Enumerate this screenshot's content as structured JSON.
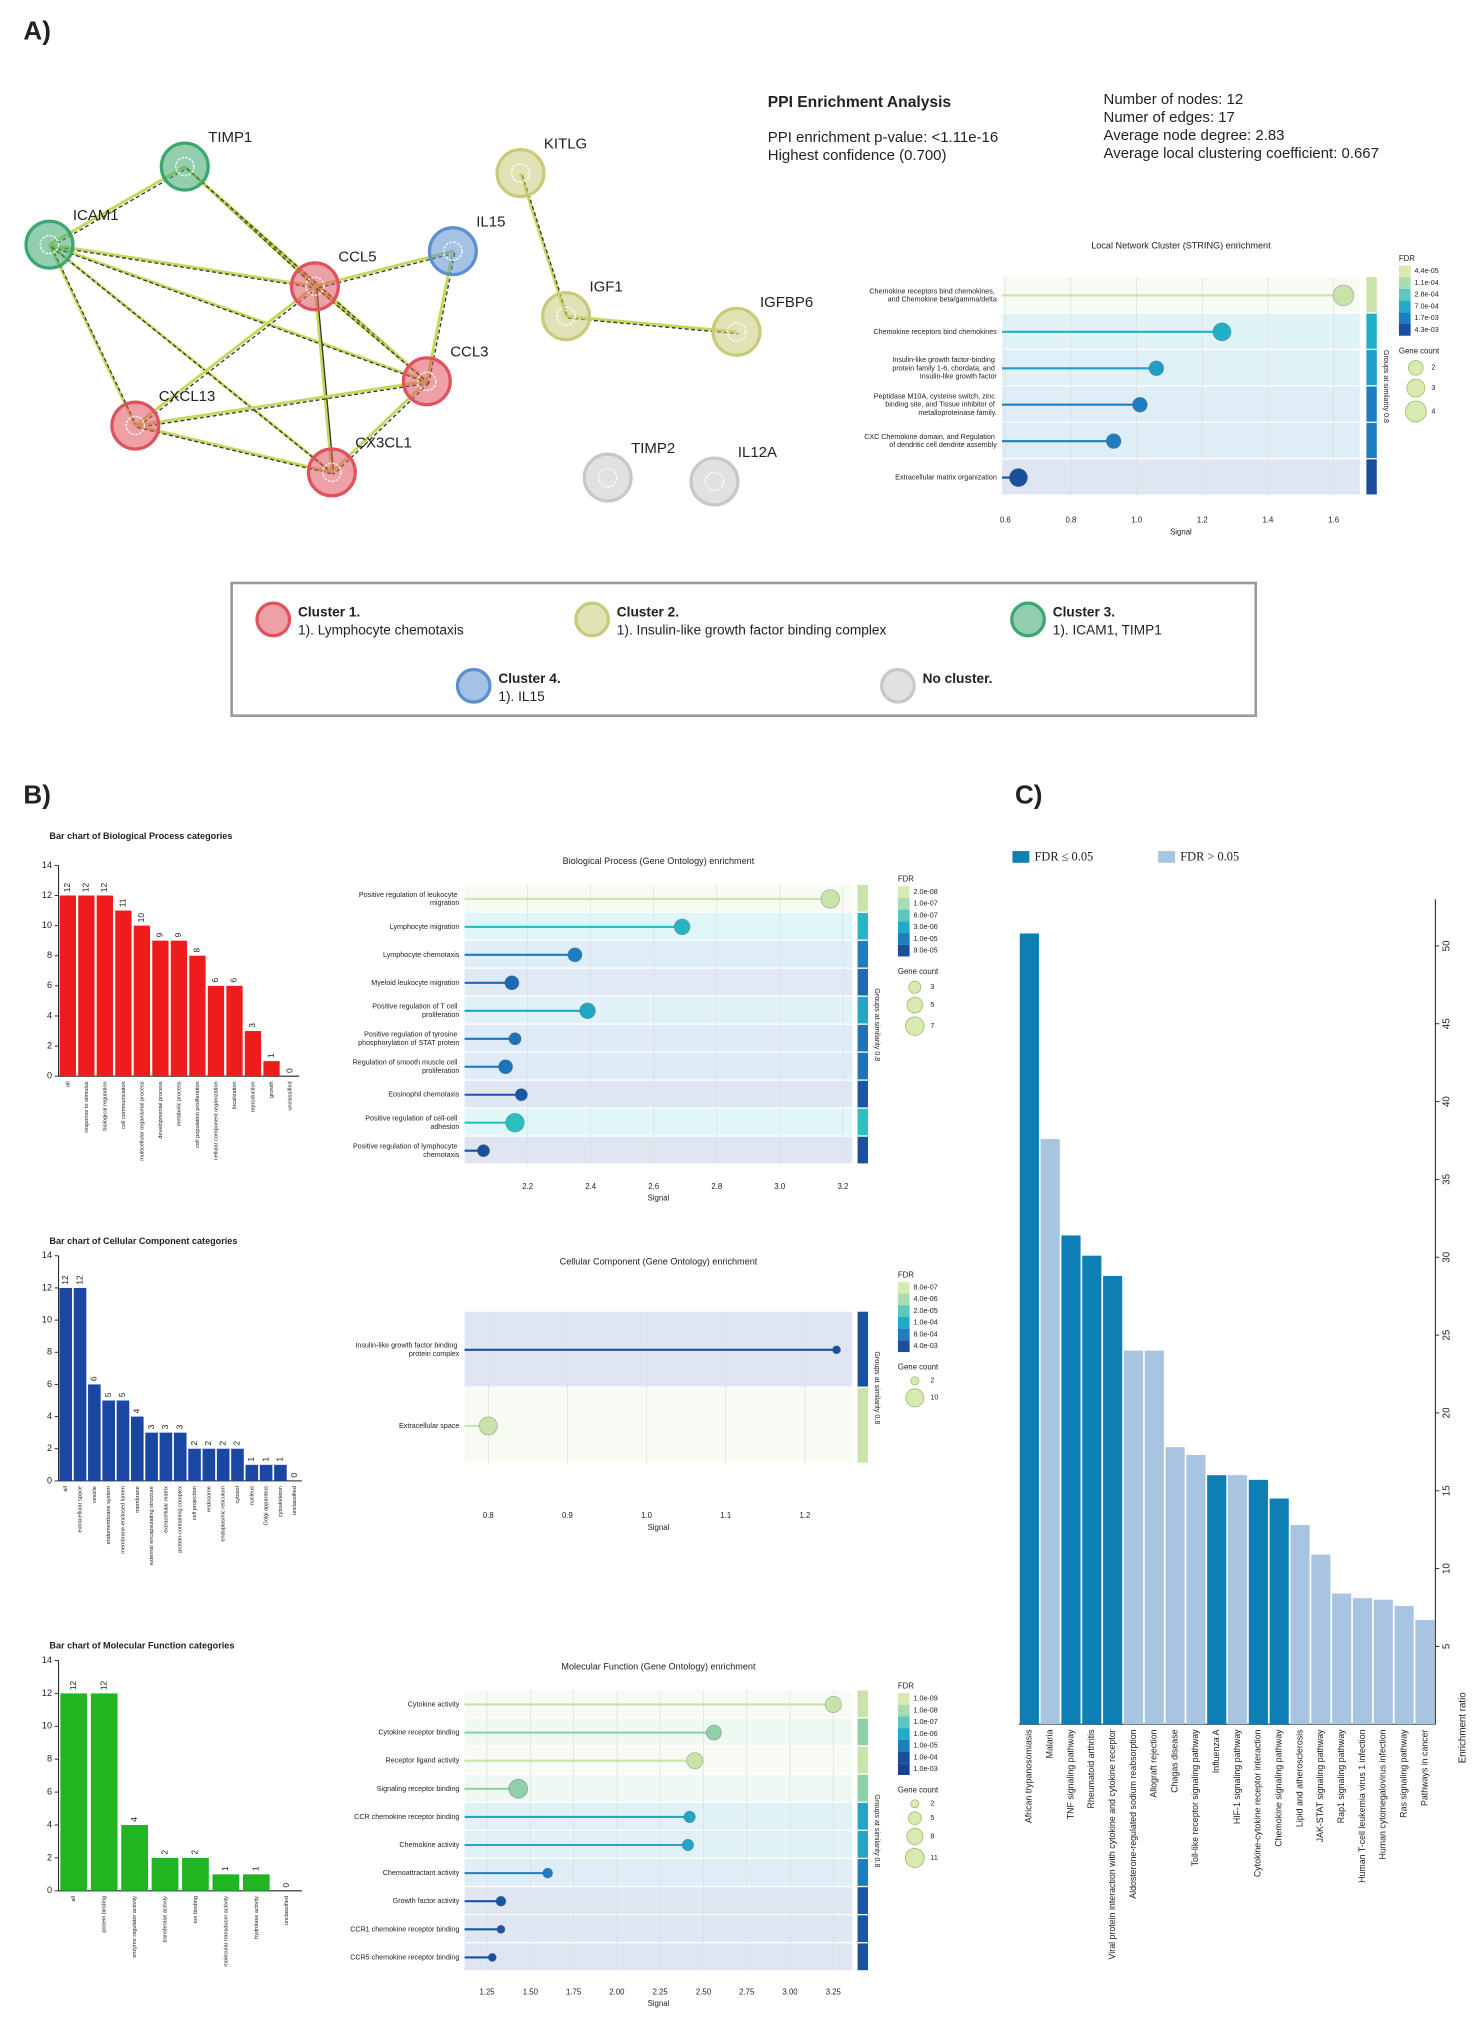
{
  "panel_labels": [
    "A)",
    "B)",
    "C)"
  ],
  "network": {
    "nodes": [
      {
        "label": "TIMP1",
        "color": "#3aa86e"
      },
      {
        "label": "ICAM1",
        "color": "#3aa86e"
      },
      {
        "label": "IL15",
        "color": "#5b8fd0"
      },
      {
        "label": "CCL5",
        "color": "#e0525e"
      },
      {
        "label": "CCL3",
        "color": "#e0525e"
      },
      {
        "label": "CXCL13",
        "color": "#e0525e"
      },
      {
        "label": "CX3CL1",
        "color": "#e0525e"
      },
      {
        "label": "KITLG",
        "color": "#c8cc7a"
      },
      {
        "label": "IGF1",
        "color": "#c8cc7a"
      },
      {
        "label": "IGFBP6",
        "color": "#c8cc7a"
      },
      {
        "label": "TIMP2",
        "color": "#c8c8c8"
      },
      {
        "label": "IL12A",
        "color": "#c8c8c8"
      }
    ]
  },
  "ppi": {
    "title": "PPI Enrichment Analysis",
    "lines": [
      "PPI enrichment p-value: <1.11e-16",
      "Highest confidence (0.700)"
    ],
    "stats": [
      "Number of nodes: 12",
      "Numer of edges: 17",
      "Average node degree: 2.83",
      "Average local clustering coefficient: 0.667"
    ]
  },
  "cluster_legend": [
    {
      "title": "Cluster 1.",
      "description": "1). Lymphocyte chemotaxis",
      "color": "#e0525e"
    },
    {
      "title": "Cluster 2.",
      "description": "1). Insulin-like growth factor binding complex",
      "color": "#c8cc7a"
    },
    {
      "title": "Cluster 3.",
      "description": "1). ICAM1, TIMP1",
      "color": "#3aa86e"
    },
    {
      "title": "Cluster 4.",
      "description": "1). IL15",
      "color": "#5b8fd0"
    },
    {
      "title": "No cluster.",
      "color": "#c8c8c8"
    }
  ],
  "chart_data": [
    {
      "type": "lollipop",
      "title": "Local Network Cluster (STRING) enrichment",
      "x_label": "Signal",
      "categories": [
        "Chemokine receptors bind chemokines, and Chemokine beta/gamma/delta",
        "Chemokine receptors bind chemokines",
        "Insulin-like growth factor-binding protein family 1-6, chordata, and Insulin-like growth factor",
        "Peptidase M10A, cysteine switch, zinc binding site, and Tissue inhibitor of metalloproteinase family.",
        "CXC Chemokine domain, and Regulation of dendritic cell dendrite assembly",
        "Extracellular matrix organization"
      ],
      "values": [
        1.63,
        1.26,
        1.06,
        1.01,
        0.93,
        0.64
      ],
      "gene_counts": [
        4,
        3,
        2,
        2,
        2,
        3
      ],
      "colors": [
        "#c9e4a8",
        "#22b0c4",
        "#1e9fc8",
        "#1c7ec0",
        "#1c7ec0",
        "#1a4fa0"
      ],
      "xlim": [
        0.59,
        1.68
      ],
      "xticks": [
        0.6,
        0.8,
        {
          "value": 1,
          "label": "1.0"
        },
        1.2,
        1.4,
        1.6
      ],
      "group_label": "Groups at similarity 0.8",
      "fdr_title": "FDR",
      "fdr_legend": [
        "4.4e-05",
        "1.1e-04",
        "2.8e-04",
        "7.0e-04",
        "1.7e-03",
        "4.3e-03"
      ],
      "fdr_colors": [
        "#d9eab0",
        "#a9dcb2",
        "#5cc7bf",
        "#22aac8",
        "#1c7ec0",
        "#1a4fa0"
      ],
      "gene_count_title": "Gene count",
      "gene_count_legend": [
        2,
        3,
        4
      ]
    },
    {
      "type": "bar",
      "title": "Bar chart of Biological Process categories",
      "categories": [
        "all",
        "response to stimulus",
        "biological regulation",
        "cell communication",
        "multicellular organismal process",
        "developmental process",
        "metabolic process",
        "cell population proliferation",
        "cellular component organization",
        "localization",
        "reproduction",
        "growth",
        "unclassified"
      ],
      "values": [
        12,
        12,
        12,
        11,
        10,
        9,
        9,
        8,
        6,
        6,
        3,
        1,
        0
      ],
      "color": "#ee1c1c",
      "ylim": [
        0,
        14
      ],
      "yticks": [
        0,
        2,
        4,
        6,
        8,
        10,
        12,
        14
      ]
    },
    {
      "type": "lollipop",
      "title": "Biological Process (Gene Ontology) enrichment",
      "x_label": "Signal",
      "categories": [
        "Positive regulation of leukocyte migration",
        "Lymphocyte migration",
        "Lymphocyte chemotaxis",
        "Myeloid leukocyte migration",
        "Positive regulation of T cell proliferation",
        "Positive regulation of tyrosine phosphorylation of STAT protein",
        "Regulation of smooth muscle cell proliferation",
        "Eosinophil chemotaxis",
        "Positive regulation of cell-cell adhesion",
        "Positive regulation of lymphocyte chemotaxis"
      ],
      "values": [
        3.16,
        2.69,
        2.35,
        2.15,
        2.39,
        2.16,
        2.13,
        2.18,
        2.16,
        2.06
      ],
      "gene_counts": [
        7,
        5,
        4,
        4,
        5,
        3,
        4,
        3,
        7,
        3
      ],
      "colors": [
        "#c9e4a8",
        "#26b5c4",
        "#1c7ec0",
        "#1c6ab4",
        "#23a5c6",
        "#1c74bc",
        "#1c74bc",
        "#1a56a8",
        "#2bbfc0",
        "#1a4fa0"
      ],
      "xlim": [
        2.0,
        3.23
      ],
      "xticks": [
        2.2,
        2.4,
        2.6,
        2.8,
        {
          "value": 3,
          "label": "3.0"
        },
        3.2
      ],
      "group_label": "Groups at similarity 0.8",
      "fdr_title": "FDR",
      "fdr_legend": [
        "2.0e-08",
        "1.0e-07",
        "6.0e-07",
        "3.0e-06",
        "1.0e-05",
        "9.0e-05"
      ],
      "fdr_colors": [
        "#d9eab0",
        "#a9dcb2",
        "#5cc7bf",
        "#22aac8",
        "#1c7ec0",
        "#1a4fa0"
      ],
      "gene_count_title": "Gene count",
      "gene_count_legend": [
        3,
        5,
        7
      ]
    },
    {
      "type": "bar",
      "title": "Bar chart of Cellular Component categories",
      "categories": [
        "all",
        "extracellular space",
        "vesicle",
        "endomembrane system",
        "membrane-enclosed lumen",
        "membrane",
        "external encapsulating structure",
        "extracellular matrix",
        "protein-containing complex",
        "cell projection",
        "endosome",
        "endoplasmic reticulum",
        "cytosol",
        "nucleus",
        "Golgi apparatus",
        "cytoskeleton",
        "unclassified"
      ],
      "values": [
        12,
        12,
        6,
        5,
        5,
        4,
        3,
        3,
        3,
        2,
        2,
        2,
        2,
        1,
        1,
        1,
        0
      ],
      "color": "#1a47a3",
      "ylim": [
        0,
        14
      ],
      "yticks": [
        0,
        2,
        4,
        6,
        8,
        10,
        12,
        14
      ]
    },
    {
      "type": "lollipop",
      "title": "Cellular Component (Gene Ontology) enrichment",
      "x_label": "Signal",
      "categories": [
        "Insulin-like growth factor binding protein complex",
        "Extracellular space"
      ],
      "values": [
        1.24,
        0.8
      ],
      "gene_counts": [
        2,
        10
      ],
      "colors": [
        "#1a4fa0",
        "#c9e4a8"
      ],
      "xlim": [
        0.77,
        1.26
      ],
      "xticks": [
        0.8,
        0.9,
        {
          "value": 1,
          "label": "1.0"
        },
        1.1,
        1.2
      ],
      "group_label": "Groups at similarity 0.8",
      "fdr_title": "FDR",
      "fdr_legend": [
        "8.0e-07",
        "4.0e-06",
        "2.0e-05",
        "1.0e-04",
        "8.0e-04",
        "4.0e-03"
      ],
      "fdr_colors": [
        "#d9eab0",
        "#a9dcb2",
        "#5cc7bf",
        "#22aac8",
        "#1c7ec0",
        "#1a4fa0"
      ],
      "gene_count_title": "Gene count",
      "gene_count_legend": [
        2,
        10
      ]
    },
    {
      "type": "bar",
      "title": "Bar chart of Molecular Function categories",
      "categories": [
        "all",
        "protein binding",
        "enzyme regulator activity",
        "transferase activity",
        "ion binding",
        "molecular transducer activity",
        "hydrolase activity",
        "unclassified"
      ],
      "values": [
        12,
        12,
        4,
        2,
        2,
        1,
        1,
        0
      ],
      "color": "#22b522",
      "ylim": [
        0,
        14
      ],
      "yticks": [
        0,
        2,
        4,
        6,
        8,
        10,
        12,
        14
      ]
    },
    {
      "type": "lollipop",
      "title": "Molecular Function (Gene Ontology) enrichment",
      "x_label": "Signal",
      "categories": [
        "Cytokine activity",
        "Cytokine receptor binding",
        "Receptor ligand activity",
        "Signaling receptor binding",
        "CCR chemokine receptor binding",
        "Chemokine activity",
        "Chemoattractant activity",
        "Growth factor activity",
        "CCR1 chemokine receptor binding",
        "CCR5 chemokine receptor binding"
      ],
      "values": [
        3.25,
        2.56,
        2.45,
        1.43,
        2.42,
        2.41,
        1.6,
        1.33,
        1.33,
        1.28
      ],
      "gene_counts": [
        8,
        7,
        8,
        11,
        4,
        4,
        3,
        3,
        2,
        2
      ],
      "colors": [
        "#c9e4a8",
        "#8fd0a8",
        "#c9e4a8",
        "#8fd0a8",
        "#23a5c6",
        "#23a5c6",
        "#1c7ec0",
        "#1a56a8",
        "#1a56a8",
        "#1a4fa0"
      ],
      "xlim": [
        1.12,
        3.36
      ],
      "xticks": [
        1.25,
        {
          "value": 1.5,
          "label": "1.50"
        },
        1.75,
        {
          "value": 2,
          "label": "2.00"
        },
        2.25,
        {
          "value": 2.5,
          "label": "2.50"
        },
        2.75,
        {
          "value": 3,
          "label": "3.00"
        },
        3.25
      ],
      "group_label": "Groups at similarity 0.8",
      "fdr_title": "FDR",
      "fdr_legend": [
        "1.0e-09",
        "1.0e-08",
        "1.0e-07",
        "1.0e-06",
        "1.0e-05",
        "1.0e-04",
        "1.0e-03"
      ],
      "fdr_colors": [
        "#d9eab0",
        "#a9dcb2",
        "#5cc7bf",
        "#22aac8",
        "#1c7ec0",
        "#1a4fa0",
        "#173f92"
      ],
      "gene_count_title": "Gene count",
      "gene_count_legend": [
        2,
        5,
        8,
        11
      ]
    },
    {
      "type": "bar",
      "y_label": "Enrichment ratio",
      "legend": [
        {
          "label": "FDR ≤ 0.05",
          "color": "#0e7fb5"
        },
        {
          "label": "FDR > 0.05",
          "color": "#a9c4e0"
        }
      ],
      "categories": [
        "African trypanosomiasis",
        "Malaria",
        "TNF signaling pathway",
        "Rheumatoid arthritis",
        "Viral protein interaction with cytokine and cytokine receptor",
        "Aldosterone-regulated sodium reabsorption",
        "Allograft rejection",
        "Chagas disease",
        "Toll-like receptor signaling pathway",
        "Influenza A",
        "HIF-1 signaling pathway",
        "Cytokine-cytokine receptor interaction",
        "Chemokine signaling pathway",
        "Lipid and atherosclerosis",
        "JAK-STAT signaling pathway",
        "Rap1 signaling pathway",
        "Human T-cell leukemia virus 1 infection",
        "Human cytomegalovirus infection",
        "Ras signaling pathway",
        "Pathways in cancer"
      ],
      "values": [
        50.8,
        37.6,
        31.4,
        30.1,
        28.8,
        24.0,
        24.0,
        17.8,
        17.3,
        16.0,
        16.0,
        15.7,
        14.5,
        12.8,
        10.9,
        8.4,
        8.1,
        8.0,
        7.6,
        6.7
      ],
      "colors": [
        "#0e7fb5",
        "#a9c4e0",
        "#0e7fb5",
        "#0e7fb5",
        "#0e7fb5",
        "#a9c4e0",
        "#a9c4e0",
        "#a9c4e0",
        "#a9c4e0",
        "#0e7fb5",
        "#a9c4e0",
        "#0e7fb5",
        "#0e7fb5",
        "#a9c4e0",
        "#a9c4e0",
        "#a9c4e0",
        "#a9c4e0",
        "#a9c4e0",
        "#a9c4e0",
        "#a9c4e0"
      ],
      "ylim": [
        0,
        53
      ],
      "yticks": [
        5,
        10,
        15,
        20,
        25,
        30,
        35,
        40,
        45,
        50
      ]
    }
  ]
}
